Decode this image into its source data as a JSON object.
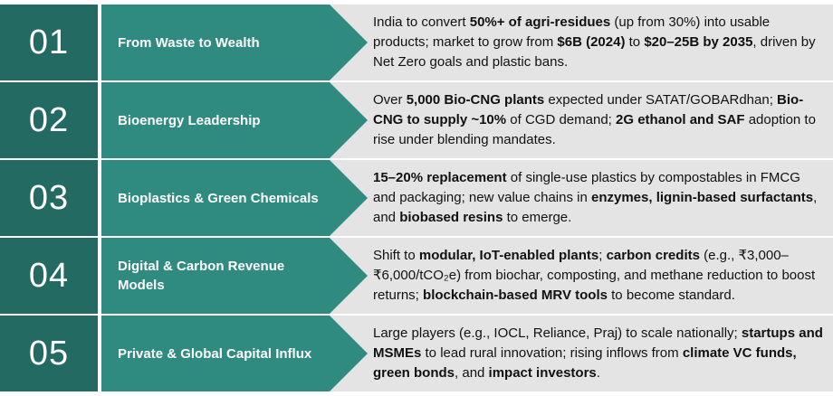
{
  "colors": {
    "number_box": "#236b62",
    "title_arrow": "#2f8a7f",
    "description_bg": "#e4e4e4"
  },
  "rows": [
    {
      "number": "01",
      "title": "From Waste to Wealth",
      "description": [
        {
          "text": " India to convert ",
          "bold": false
        },
        {
          "text": "50%+ of agri-residues",
          "bold": true
        },
        {
          "text": " (up from 30%) into usable products; market to grow from ",
          "bold": false
        },
        {
          "text": "$6B (2024)",
          "bold": true
        },
        {
          "text": " to ",
          "bold": false
        },
        {
          "text": "$20–25B by 2035",
          "bold": true
        },
        {
          "text": ", driven by Net Zero goals and plastic bans.",
          "bold": false
        }
      ]
    },
    {
      "number": "02",
      "title": "Bioenergy Leadership",
      "description": [
        {
          "text": "Over ",
          "bold": false
        },
        {
          "text": "5,000 Bio-CNG plants",
          "bold": true
        },
        {
          "text": " expected under SATAT/GOBARdhan; ",
          "bold": false
        },
        {
          "text": "Bio-CNG to supply ~10%",
          "bold": true
        },
        {
          "text": " of CGD demand; ",
          "bold": false
        },
        {
          "text": "2G ethanol and SAF",
          "bold": true
        },
        {
          "text": " adoption to rise under blending mandates.",
          "bold": false
        }
      ]
    },
    {
      "number": "03",
      "title": "Bioplastics & Green Chemicals",
      "description": [
        {
          "text": "15–20% replacement",
          "bold": true
        },
        {
          "text": " of single-use plastics by compostables in FMCG and packaging; new value chains in ",
          "bold": false
        },
        {
          "text": "enzymes, lignin-based surfactants",
          "bold": true
        },
        {
          "text": ", and ",
          "bold": false
        },
        {
          "text": "biobased resins",
          "bold": true
        },
        {
          "text": " to emerge.",
          "bold": false
        }
      ]
    },
    {
      "number": "04",
      "title": "Digital & Carbon Revenue Models",
      "description": [
        {
          "text": "Shift to ",
          "bold": false
        },
        {
          "text": "modular, IoT-enabled plants",
          "bold": true
        },
        {
          "text": "; ",
          "bold": false
        },
        {
          "text": "carbon credits",
          "bold": true
        },
        {
          "text": " (e.g., ₹3,000–₹6,000/tCO₂e) from biochar, composting, and methane reduction to boost returns; ",
          "bold": false
        },
        {
          "text": "blockchain-based MRV tools",
          "bold": true
        },
        {
          "text": " to become standard.",
          "bold": false
        }
      ]
    },
    {
      "number": "05",
      "title": "Private & Global Capital Influx",
      "description": [
        {
          "text": "Large players (e.g., IOCL, Reliance, Praj) to scale nationally; ",
          "bold": false
        },
        {
          "text": "startups and MSMEs",
          "bold": true
        },
        {
          "text": " to lead rural innovation; rising inflows from ",
          "bold": false
        },
        {
          "text": "climate VC funds, green bonds",
          "bold": true
        },
        {
          "text": ", and ",
          "bold": false
        },
        {
          "text": "impact investors",
          "bold": true
        },
        {
          "text": ".",
          "bold": false
        }
      ]
    }
  ]
}
